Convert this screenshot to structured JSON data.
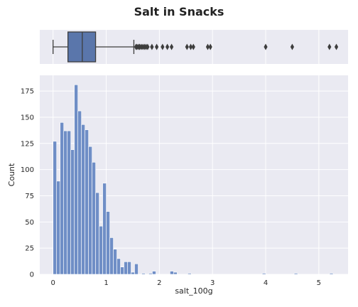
{
  "chart_data": [
    {
      "type": "box",
      "title": "Salt in Snacks",
      "variable": "salt_100g",
      "summary": {
        "min": 0.0,
        "q1": 0.28,
        "median": 0.55,
        "q3": 0.8,
        "whisker_high": 1.52
      },
      "outliers": [
        1.56,
        1.58,
        1.61,
        1.63,
        1.66,
        1.69,
        1.72,
        1.75,
        1.78,
        1.86,
        1.95,
        2.06,
        2.15,
        2.23,
        2.52,
        2.59,
        2.64,
        2.91,
        2.96,
        4.0,
        4.5,
        5.2,
        5.33
      ],
      "xlim": [
        -0.25,
        5.55
      ],
      "grid": true,
      "color": "#5a76ab"
    },
    {
      "type": "histogram",
      "xlabel": "salt_100g",
      "ylabel": "Count",
      "xlim": [
        -0.25,
        5.55
      ],
      "ylim": [
        0,
        190
      ],
      "xticks": [
        0,
        1,
        2,
        3,
        4,
        5
      ],
      "yticks": [
        0,
        25,
        50,
        75,
        100,
        125,
        150,
        175
      ],
      "bin_width": 0.0667,
      "bin_start": 0.0,
      "counts": [
        127,
        89,
        145,
        137,
        137,
        119,
        181,
        156,
        143,
        138,
        122,
        107,
        78,
        46,
        87,
        60,
        35,
        24,
        15,
        7,
        12,
        12,
        2,
        10,
        0,
        1,
        0,
        1,
        3,
        0,
        0,
        0,
        0,
        3,
        2,
        0,
        0,
        0,
        1,
        0,
        0,
        0,
        0,
        0,
        0,
        0,
        0,
        0,
        0,
        0,
        0,
        0,
        0,
        0,
        0,
        0,
        0,
        0,
        0,
        1,
        0,
        0,
        0,
        0,
        0,
        0,
        0,
        0,
        1,
        0,
        0,
        0,
        0,
        0,
        0,
        0,
        0,
        0,
        1,
        0
      ],
      "grid": true,
      "color": "#6f8ec6"
    }
  ]
}
